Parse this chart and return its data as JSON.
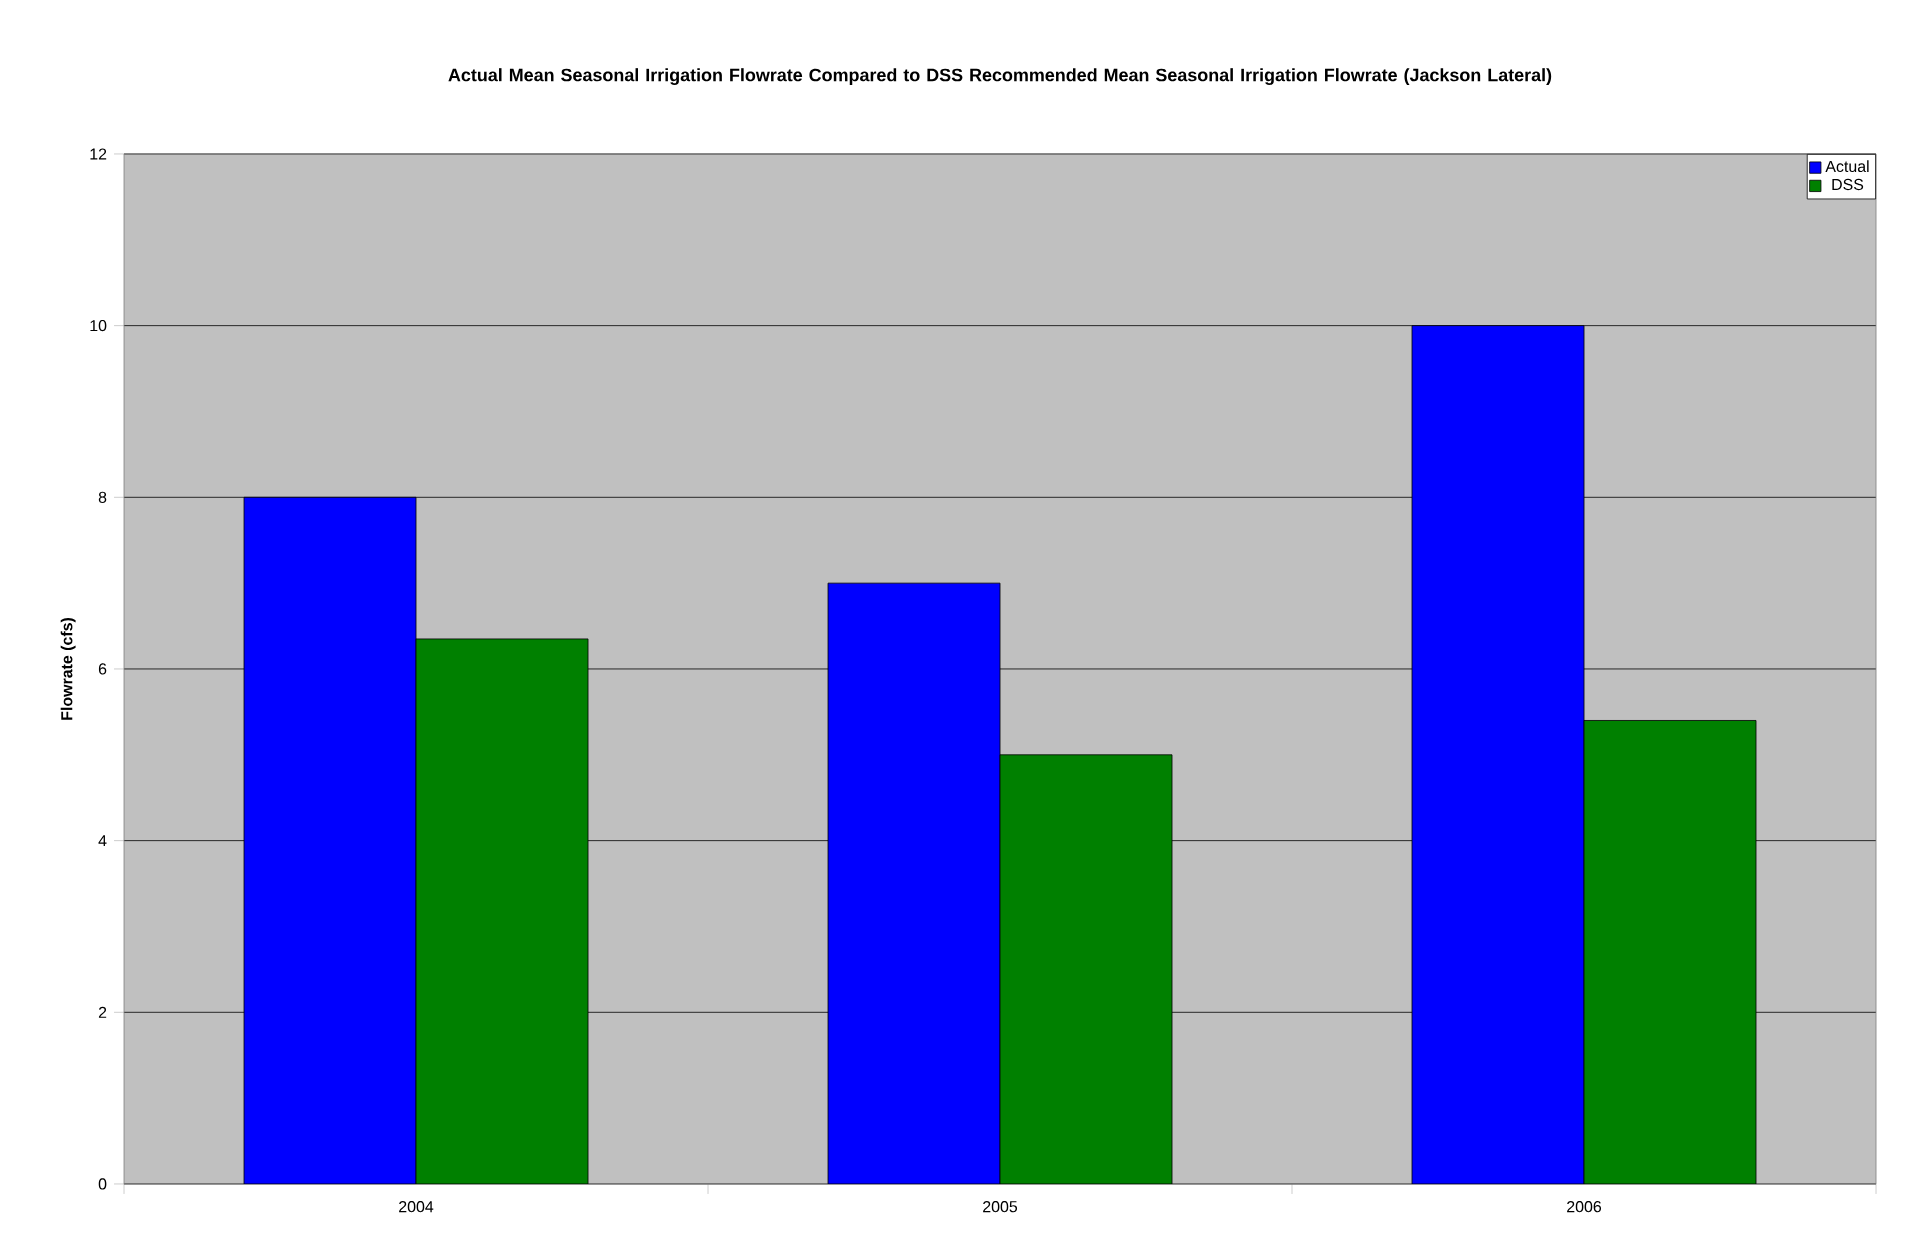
{
  "chart_data": {
    "type": "bar",
    "title": "Actual Mean Seasonal Irrigation Flowrate Compared to DSS Recommended Mean Seasonal Irrigation Flowrate (Jackson Lateral)",
    "ylabel": "Flowrate (cfs)",
    "categories": [
      "2004",
      "2005",
      "2006"
    ],
    "series": [
      {
        "name": "Actual",
        "color": "#0000ff",
        "values": [
          8,
          7,
          10
        ]
      },
      {
        "name": "DSS",
        "color": "#008000",
        "values": [
          6.35,
          5,
          5.4
        ]
      }
    ],
    "ylim": [
      0,
      12
    ],
    "yticks": [
      0,
      2,
      4,
      6,
      8,
      10,
      12
    ],
    "grid": "y",
    "legend": "top right"
  }
}
